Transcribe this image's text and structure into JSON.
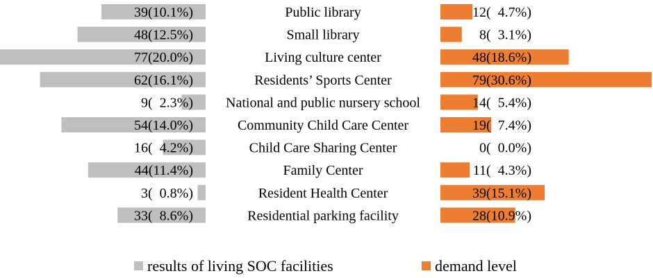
{
  "chart_data": {
    "type": "bar",
    "orientation": "horizontal-butterfly",
    "categories": [
      "Public library",
      "Small library",
      "Living culture center",
      "Residents’ Sports Center",
      "National and public nursery school",
      "Community Child Care Center",
      "Child Care Sharing Center",
      "Family Center",
      "Resident Health Center",
      "Residential parking facility"
    ],
    "series": [
      {
        "name": "results of living SOC facilities",
        "color": "#bfbfbf",
        "values": [
          39,
          48,
          77,
          62,
          9,
          54,
          16,
          44,
          3,
          33
        ],
        "labels": [
          "39(10.1%)",
          "48(12.5%)",
          "77(20.0%)",
          "62(16.1%)",
          "9(  2.3%)",
          "54(14.0%)",
          "16(  4.2%)",
          "44(11.4%)",
          "3(  0.8%)",
          "33(  8.6%)"
        ]
      },
      {
        "name": "demand level",
        "color": "#ed7d31",
        "values": [
          12,
          8,
          48,
          79,
          14,
          19,
          0,
          11,
          39,
          28
        ],
        "labels": [
          "12(  4.7%)",
          "8(  3.1%)",
          "48(18.6%)",
          "79(30.6%)",
          "14(  5.4%)",
          "19(  7.4%)",
          "0(  0.0%)",
          "11(  4.3%)",
          "39(15.1%)",
          "28(10.9%)"
        ]
      }
    ],
    "legend": {
      "position": "bottom-center"
    }
  }
}
